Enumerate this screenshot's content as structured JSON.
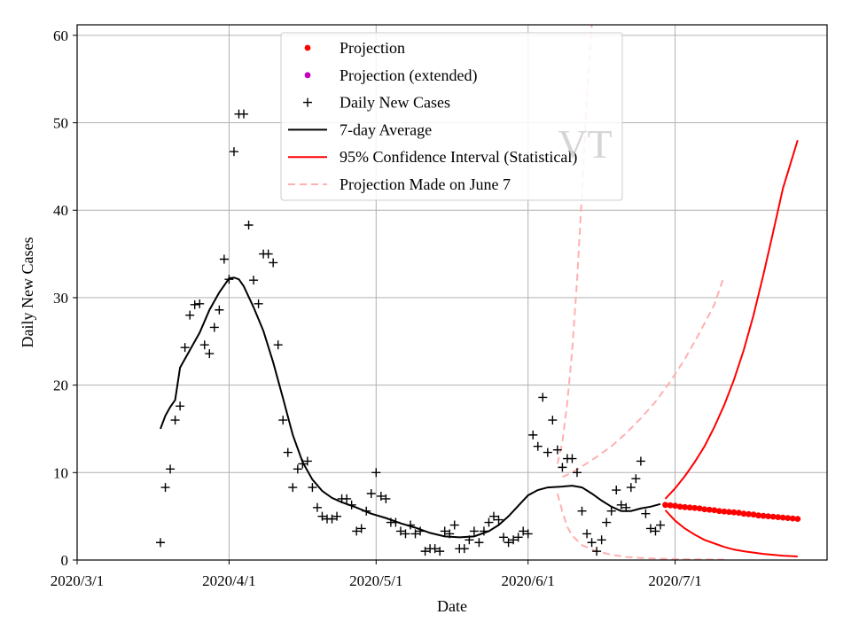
{
  "chart_data": {
    "type": "line",
    "xlabel": "Date",
    "ylabel": "Daily New Cases",
    "watermark": "VT",
    "x_range": [
      "2020-03-01",
      "2020-08-01"
    ],
    "x_ticks": [
      {
        "date": "2020-03-01",
        "label": "2020/3/1"
      },
      {
        "date": "2020-04-01",
        "label": "2020/4/1"
      },
      {
        "date": "2020-05-01",
        "label": "2020/5/1"
      },
      {
        "date": "2020-06-01",
        "label": "2020/6/1"
      },
      {
        "date": "2020-07-01",
        "label": "2020/7/1"
      }
    ],
    "ylim": [
      0,
      61.2
    ],
    "y_ticks": [
      0,
      10,
      20,
      30,
      40,
      50,
      60
    ],
    "grid": true,
    "legend_position": "top-center",
    "legend": [
      {
        "label": "Projection",
        "marker": "dot",
        "color": "#ff0000"
      },
      {
        "label": "Projection (extended)",
        "marker": "dot",
        "color": "#bf00bf"
      },
      {
        "label": "Daily New Cases",
        "marker": "plus",
        "color": "#000000"
      },
      {
        "label": "7-day Average",
        "marker": "line",
        "color": "#000000"
      },
      {
        "label": "95% Confidence Interval (Statistical)",
        "marker": "line",
        "color": "#ff0000"
      },
      {
        "label": "Projection Made on June 7",
        "marker": "dashed",
        "color": "#ffb0b0"
      }
    ],
    "daily_new_cases": [
      [
        "2020-03-18",
        2
      ],
      [
        "2020-03-19",
        8.3
      ],
      [
        "2020-03-20",
        10.4
      ],
      [
        "2020-03-21",
        16
      ],
      [
        "2020-03-22",
        17.6
      ],
      [
        "2020-03-23",
        24.3
      ],
      [
        "2020-03-24",
        28
      ],
      [
        "2020-03-25",
        29.2
      ],
      [
        "2020-03-26",
        29.3
      ],
      [
        "2020-03-27",
        24.6
      ],
      [
        "2020-03-28",
        23.6
      ],
      [
        "2020-03-29",
        26.6
      ],
      [
        "2020-03-30",
        28.6
      ],
      [
        "2020-03-31",
        34.4
      ],
      [
        "2020-04-01",
        32.1
      ],
      [
        "2020-04-02",
        46.7
      ],
      [
        "2020-04-03",
        51
      ],
      [
        "2020-04-04",
        51
      ],
      [
        "2020-04-05",
        38.3
      ],
      [
        "2020-04-06",
        32
      ],
      [
        "2020-04-07",
        29.3
      ],
      [
        "2020-04-08",
        35
      ],
      [
        "2020-04-09",
        35
      ],
      [
        "2020-04-10",
        34
      ],
      [
        "2020-04-11",
        24.6
      ],
      [
        "2020-04-12",
        16
      ],
      [
        "2020-04-13",
        12.3
      ],
      [
        "2020-04-14",
        8.3
      ],
      [
        "2020-04-15",
        10.4
      ],
      [
        "2020-04-16",
        11
      ],
      [
        "2020-04-17",
        11.3
      ],
      [
        "2020-04-18",
        8.3
      ],
      [
        "2020-04-19",
        6
      ],
      [
        "2020-04-20",
        5
      ],
      [
        "2020-04-21",
        4.7
      ],
      [
        "2020-04-22",
        4.7
      ],
      [
        "2020-04-23",
        5
      ],
      [
        "2020-04-24",
        7
      ],
      [
        "2020-04-25",
        7
      ],
      [
        "2020-04-26",
        6.3
      ],
      [
        "2020-04-27",
        3.3
      ],
      [
        "2020-04-28",
        3.6
      ],
      [
        "2020-04-29",
        5.6
      ],
      [
        "2020-04-30",
        7.6
      ],
      [
        "2020-05-01",
        10
      ],
      [
        "2020-05-02",
        7.3
      ],
      [
        "2020-05-03",
        7
      ],
      [
        "2020-05-04",
        4.3
      ],
      [
        "2020-05-05",
        4.3
      ],
      [
        "2020-05-06",
        3.3
      ],
      [
        "2020-05-07",
        3
      ],
      [
        "2020-05-08",
        4
      ],
      [
        "2020-05-09",
        3
      ],
      [
        "2020-05-10",
        3.3
      ],
      [
        "2020-05-11",
        1
      ],
      [
        "2020-05-12",
        1.3
      ],
      [
        "2020-05-13",
        1.3
      ],
      [
        "2020-05-14",
        1
      ],
      [
        "2020-05-15",
        3.3
      ],
      [
        "2020-05-16",
        3
      ],
      [
        "2020-05-17",
        4
      ],
      [
        "2020-05-18",
        1.3
      ],
      [
        "2020-05-19",
        1.3
      ],
      [
        "2020-05-20",
        2.3
      ],
      [
        "2020-05-21",
        3.3
      ],
      [
        "2020-05-22",
        2
      ],
      [
        "2020-05-23",
        3.3
      ],
      [
        "2020-05-24",
        4.3
      ],
      [
        "2020-05-25",
        5
      ],
      [
        "2020-05-26",
        4.6
      ],
      [
        "2020-05-27",
        2.6
      ],
      [
        "2020-05-28",
        2
      ],
      [
        "2020-05-29",
        2.3
      ],
      [
        "2020-05-30",
        2.6
      ],
      [
        "2020-05-31",
        3.3
      ],
      [
        "2020-06-01",
        3
      ],
      [
        "2020-06-02",
        14.3
      ],
      [
        "2020-06-03",
        13
      ],
      [
        "2020-06-04",
        18.6
      ],
      [
        "2020-06-05",
        12.3
      ],
      [
        "2020-06-06",
        16
      ],
      [
        "2020-06-07",
        12.6
      ],
      [
        "2020-06-08",
        10.6
      ],
      [
        "2020-06-09",
        11.6
      ],
      [
        "2020-06-10",
        11.6
      ],
      [
        "2020-06-11",
        10
      ],
      [
        "2020-06-12",
        5.6
      ],
      [
        "2020-06-13",
        3
      ],
      [
        "2020-06-14",
        2
      ],
      [
        "2020-06-15",
        1
      ],
      [
        "2020-06-16",
        2.3
      ],
      [
        "2020-06-17",
        4.3
      ],
      [
        "2020-06-18",
        5.6
      ],
      [
        "2020-06-19",
        8
      ],
      [
        "2020-06-20",
        6.3
      ],
      [
        "2020-06-21",
        6
      ],
      [
        "2020-06-22",
        8.3
      ],
      [
        "2020-06-23",
        9.3
      ],
      [
        "2020-06-24",
        11.3
      ],
      [
        "2020-06-25",
        5.3
      ],
      [
        "2020-06-26",
        3.6
      ],
      [
        "2020-06-27",
        3.3
      ],
      [
        "2020-06-28",
        4
      ]
    ],
    "seven_day_average": [
      [
        "2020-03-18",
        15
      ],
      [
        "2020-03-19",
        16.5
      ],
      [
        "2020-03-20",
        17.5
      ],
      [
        "2020-03-21",
        18.3
      ],
      [
        "2020-03-22",
        22
      ],
      [
        "2020-03-24",
        24
      ],
      [
        "2020-03-26",
        26
      ],
      [
        "2020-03-28",
        28.6
      ],
      [
        "2020-03-30",
        30.6
      ],
      [
        "2020-04-01",
        32.2
      ],
      [
        "2020-04-02",
        32.3
      ],
      [
        "2020-04-03",
        32.1
      ],
      [
        "2020-04-04",
        31.3
      ],
      [
        "2020-04-06",
        28.9
      ],
      [
        "2020-04-08",
        26.2
      ],
      [
        "2020-04-10",
        22.6
      ],
      [
        "2020-04-12",
        18.5
      ],
      [
        "2020-04-14",
        14.3
      ],
      [
        "2020-04-16",
        11.2
      ],
      [
        "2020-04-18",
        9.2
      ],
      [
        "2020-04-20",
        7.9
      ],
      [
        "2020-04-22",
        7.1
      ],
      [
        "2020-04-24",
        6.6
      ],
      [
        "2020-04-27",
        6
      ],
      [
        "2020-04-30",
        5.3
      ],
      [
        "2020-05-03",
        4.8
      ],
      [
        "2020-05-06",
        4.2
      ],
      [
        "2020-05-09",
        3.7
      ],
      [
        "2020-05-12",
        3.1
      ],
      [
        "2020-05-15",
        2.7
      ],
      [
        "2020-05-18",
        2.6
      ],
      [
        "2020-05-21",
        2.7
      ],
      [
        "2020-05-24",
        3.3
      ],
      [
        "2020-05-26",
        4
      ],
      [
        "2020-05-28",
        5
      ],
      [
        "2020-05-30",
        6.2
      ],
      [
        "2020-06-01",
        7.4
      ],
      [
        "2020-06-03",
        8
      ],
      [
        "2020-06-05",
        8.3
      ],
      [
        "2020-06-08",
        8.4
      ],
      [
        "2020-06-10",
        8.5
      ],
      [
        "2020-06-12",
        8.3
      ],
      [
        "2020-06-14",
        7.6
      ],
      [
        "2020-06-16",
        6.8
      ],
      [
        "2020-06-18",
        6.1
      ],
      [
        "2020-06-20",
        5.6
      ],
      [
        "2020-06-22",
        5.6
      ],
      [
        "2020-06-24",
        5.9
      ],
      [
        "2020-06-26",
        6.1
      ],
      [
        "2020-06-28",
        6.4
      ]
    ],
    "projection": [
      [
        "2020-06-29",
        6.3
      ],
      [
        "2020-06-30",
        6.25
      ],
      [
        "2020-07-01",
        6.2
      ],
      [
        "2020-07-02",
        6.1
      ],
      [
        "2020-07-03",
        6.05
      ],
      [
        "2020-07-04",
        6
      ],
      [
        "2020-07-05",
        5.95
      ],
      [
        "2020-07-06",
        5.9
      ],
      [
        "2020-07-07",
        5.8
      ],
      [
        "2020-07-08",
        5.75
      ],
      [
        "2020-07-09",
        5.7
      ],
      [
        "2020-07-10",
        5.6
      ],
      [
        "2020-07-11",
        5.55
      ],
      [
        "2020-07-12",
        5.5
      ],
      [
        "2020-07-13",
        5.45
      ],
      [
        "2020-07-14",
        5.4
      ],
      [
        "2020-07-15",
        5.3
      ],
      [
        "2020-07-16",
        5.25
      ],
      [
        "2020-07-17",
        5.2
      ],
      [
        "2020-07-18",
        5.1
      ],
      [
        "2020-07-19",
        5.05
      ],
      [
        "2020-07-20",
        5
      ],
      [
        "2020-07-21",
        4.95
      ],
      [
        "2020-07-22",
        4.9
      ],
      [
        "2020-07-23",
        4.85
      ],
      [
        "2020-07-24",
        4.8
      ],
      [
        "2020-07-25",
        4.75
      ],
      [
        "2020-07-26",
        4.7
      ]
    ],
    "ci_upper": [
      [
        "2020-06-29",
        7
      ],
      [
        "2020-07-01",
        8.2
      ],
      [
        "2020-07-03",
        9.6
      ],
      [
        "2020-07-05",
        11.2
      ],
      [
        "2020-07-07",
        13
      ],
      [
        "2020-07-09",
        15.2
      ],
      [
        "2020-07-11",
        17.7
      ],
      [
        "2020-07-13",
        20.6
      ],
      [
        "2020-07-15",
        24
      ],
      [
        "2020-07-17",
        28
      ],
      [
        "2020-07-19",
        32.6
      ],
      [
        "2020-07-21",
        37.5
      ],
      [
        "2020-07-23",
        42.5
      ],
      [
        "2020-07-26",
        48
      ]
    ],
    "ci_lower": [
      [
        "2020-06-29",
        5.7
      ],
      [
        "2020-07-01",
        4.5
      ],
      [
        "2020-07-03",
        3.6
      ],
      [
        "2020-07-05",
        2.9
      ],
      [
        "2020-07-07",
        2.3
      ],
      [
        "2020-07-09",
        1.9
      ],
      [
        "2020-07-11",
        1.5
      ],
      [
        "2020-07-13",
        1.2
      ],
      [
        "2020-07-15",
        1
      ],
      [
        "2020-07-17",
        0.85
      ],
      [
        "2020-07-19",
        0.7
      ],
      [
        "2020-07-21",
        0.6
      ],
      [
        "2020-07-23",
        0.5
      ],
      [
        "2020-07-26",
        0.4
      ]
    ],
    "june7_projection": [
      [
        "2020-06-08",
        9.5
      ],
      [
        "2020-06-10",
        10
      ],
      [
        "2020-06-12",
        10.7
      ],
      [
        "2020-06-15",
        11.8
      ],
      [
        "2020-06-18",
        13
      ],
      [
        "2020-06-21",
        14.5
      ],
      [
        "2020-06-24",
        16.2
      ],
      [
        "2020-06-27",
        18.1
      ],
      [
        "2020-06-30",
        20.4
      ],
      [
        "2020-07-03",
        23
      ],
      [
        "2020-07-06",
        26
      ],
      [
        "2020-07-09",
        29.2
      ],
      [
        "2020-07-11",
        32.5
      ]
    ],
    "june7_ci_upper": [
      [
        "2020-06-07",
        11
      ],
      [
        "2020-06-08",
        13.5
      ],
      [
        "2020-06-09",
        18
      ],
      [
        "2020-06-10",
        24
      ],
      [
        "2020-06-11",
        32
      ],
      [
        "2020-06-12",
        42
      ],
      [
        "2020-06-13",
        53
      ],
      [
        "2020-06-14",
        61.2
      ]
    ],
    "june7_ci_lower": [
      [
        "2020-06-07",
        7.6
      ],
      [
        "2020-06-08",
        5.5
      ],
      [
        "2020-06-09",
        3.8
      ],
      [
        "2020-06-10",
        2.8
      ],
      [
        "2020-06-12",
        1.7
      ],
      [
        "2020-06-15",
        1
      ],
      [
        "2020-06-18",
        0.6
      ],
      [
        "2020-06-21",
        0.35
      ],
      [
        "2020-06-25",
        0.2
      ],
      [
        "2020-07-01",
        0.1
      ],
      [
        "2020-07-11",
        0.05
      ]
    ]
  }
}
